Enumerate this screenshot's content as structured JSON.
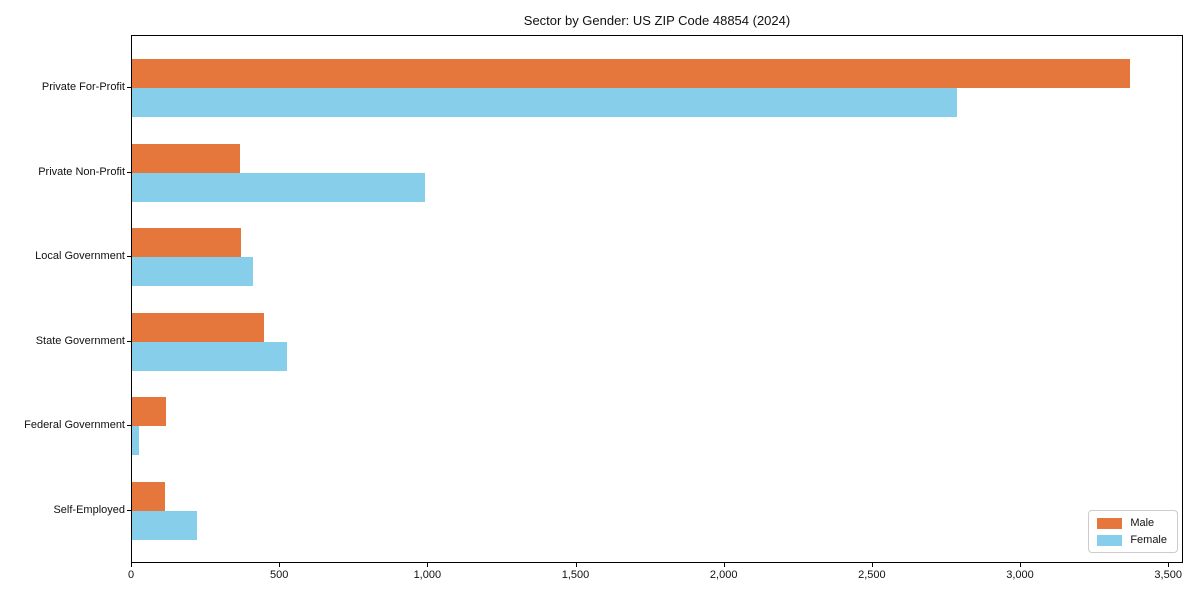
{
  "chart_data": {
    "type": "bar",
    "orientation": "horizontal",
    "title": "Sector by Gender: US ZIP Code 48854 (2024)",
    "categories": [
      "Private For-Profit",
      "Private Non-Profit",
      "Local Government",
      "State Government",
      "Federal Government",
      "Self-Employed"
    ],
    "series": [
      {
        "name": "Male",
        "color": "#E6773C",
        "values": [
          3375,
          365,
          370,
          445,
          115,
          110
        ]
      },
      {
        "name": "Female",
        "color": "#87CEEB",
        "values": [
          2790,
          990,
          410,
          525,
          22,
          220
        ]
      }
    ],
    "xlabel": "",
    "ylabel": "",
    "xlim": [
      0,
      3550
    ],
    "xticks": [
      0,
      500,
      1000,
      1500,
      2000,
      2500,
      3000,
      3500
    ],
    "xtick_labels": [
      "0",
      "500",
      "1,000",
      "1,500",
      "2,000",
      "2,500",
      "3,000",
      "3,500"
    ],
    "grid": false,
    "legend": {
      "position": "lower right",
      "entries": [
        "Male",
        "Female"
      ]
    }
  }
}
